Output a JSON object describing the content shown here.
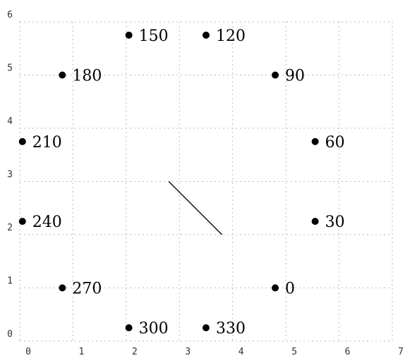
{
  "chart_data": {
    "type": "scatter",
    "title": "",
    "xlabel": "",
    "ylabel": "",
    "xlim": [
      0,
      7
    ],
    "ylim": [
      0,
      6
    ],
    "x_ticks": [
      "0",
      "1",
      "2",
      "3",
      "4",
      "5",
      "6",
      "7"
    ],
    "y_ticks": [
      "0",
      "1",
      "2",
      "3",
      "4",
      "5",
      "6"
    ],
    "grid": true,
    "points": [
      {
        "x": 4.8,
        "y": 1.0,
        "label": "0"
      },
      {
        "x": 5.55,
        "y": 2.25,
        "label": "30"
      },
      {
        "x": 5.55,
        "y": 3.75,
        "label": "60"
      },
      {
        "x": 4.8,
        "y": 5.0,
        "label": "90"
      },
      {
        "x": 3.5,
        "y": 5.75,
        "label": "120"
      },
      {
        "x": 2.05,
        "y": 5.75,
        "label": "150"
      },
      {
        "x": 0.8,
        "y": 5.0,
        "label": "180"
      },
      {
        "x": 0.05,
        "y": 3.75,
        "label": "210"
      },
      {
        "x": 0.05,
        "y": 2.25,
        "label": "240"
      },
      {
        "x": 0.8,
        "y": 1.0,
        "label": "270"
      },
      {
        "x": 2.05,
        "y": 0.25,
        "label": "300"
      },
      {
        "x": 3.5,
        "y": 0.25,
        "label": "330"
      }
    ],
    "segments": [
      {
        "x1": 2.8,
        "y1": 3.0,
        "x2": 3.8,
        "y2": 2.0
      }
    ],
    "colors": {
      "point": "#000000",
      "line": "#000000",
      "grid": "#bbbbbb"
    }
  }
}
